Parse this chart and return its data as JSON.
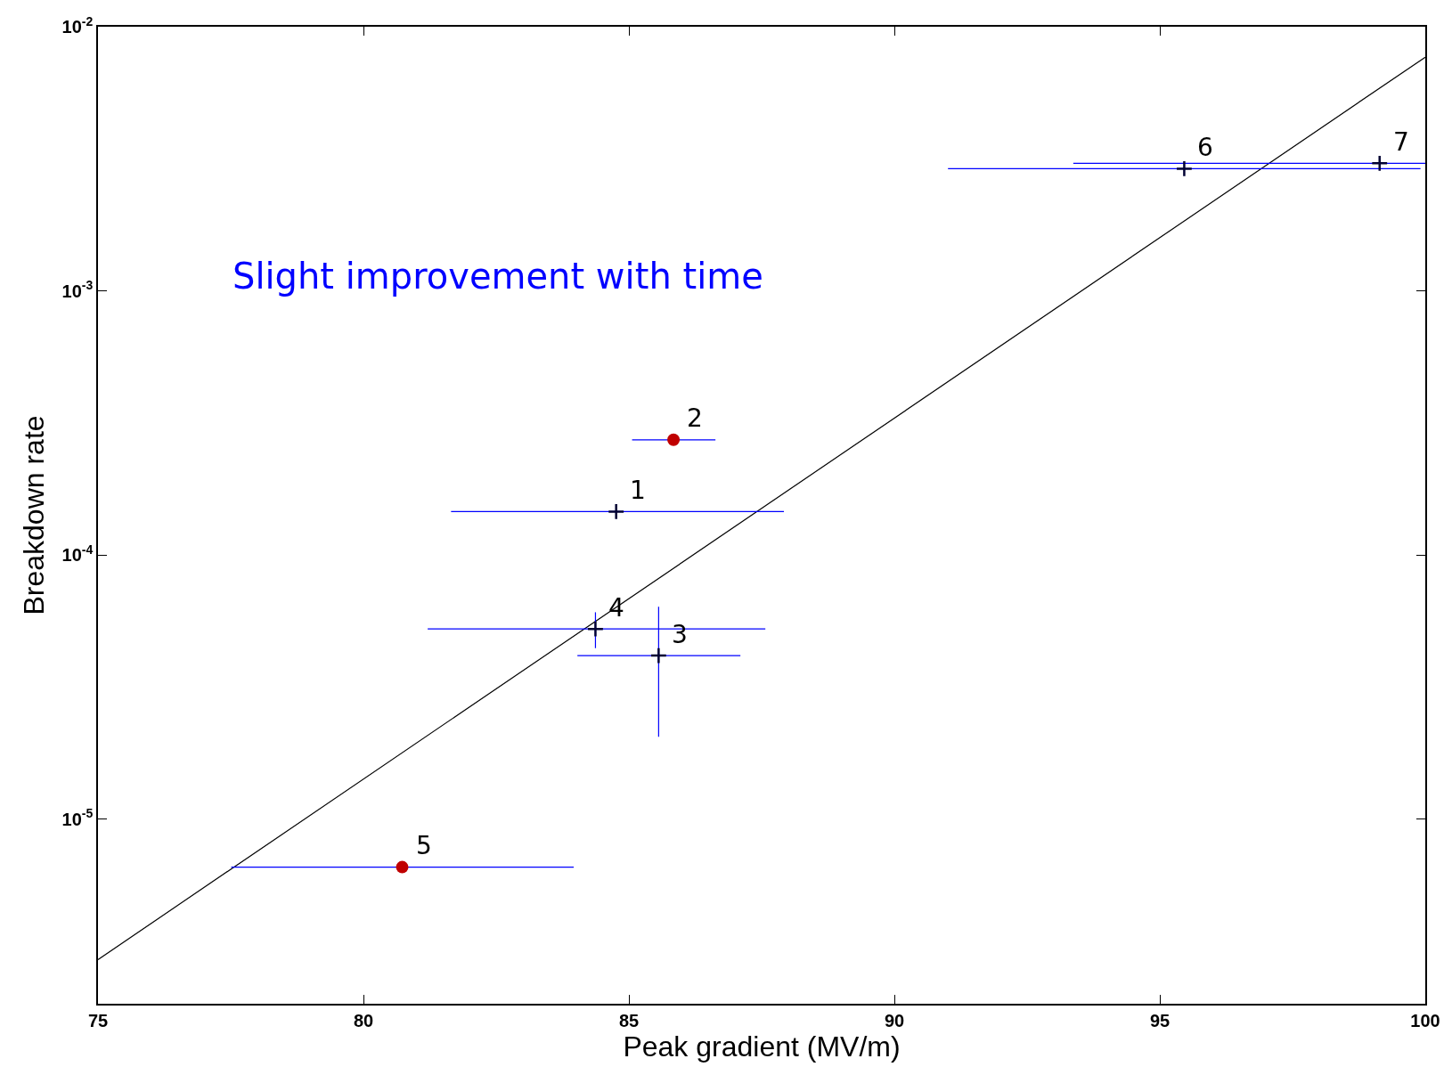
{
  "chart_data": {
    "type": "scatter",
    "xlabel": "Peak gradient (MV/m)",
    "ylabel": "Breakdown rate",
    "log": "y",
    "grid": false,
    "xlim": [
      75,
      100
    ],
    "xticks": [
      75,
      80,
      85,
      90,
      95,
      100
    ],
    "ylim": [
      2e-06,
      0.01
    ],
    "yticks": [
      {
        "value": 1e-05,
        "label": "10$^{-5}$"
      },
      {
        "value": 0.0001,
        "label": "10$^{-4}$"
      },
      {
        "value": 0.001,
        "label": "10$^{-3}$"
      },
      {
        "value": 0.01,
        "label": "10$^{-2}$"
      }
    ],
    "series": [
      {
        "type": "line",
        "color": "#000000",
        "marker": "none",
        "line_style": "solid",
        "x": [
          75,
          100
        ],
        "values": [
          2.94e-06,
          0.00767
        ]
      },
      {
        "type": "scatter",
        "color": "#000033",
        "marker": "cross",
        "x": [
          84.76,
          85.56,
          84.37,
          95.46,
          99.14
        ],
        "values": [
          0.000146,
          4.16e-05,
          5.25e-05,
          0.0029,
          0.00304
        ],
        "xerrors": [
          [
            81.65,
            87.92
          ],
          [
            84.03,
            87.1
          ],
          [
            81.21,
            87.57
          ],
          [
            91.01,
            99.91
          ],
          [
            93.37,
            100
          ]
        ],
        "errors": [
          null,
          [
            2.05e-05,
            6.37e-05
          ],
          [
            4.44e-05,
            6.07e-05
          ],
          null,
          null
        ]
      },
      {
        "type": "scatter",
        "color": "#c00000",
        "marker": "circle",
        "x": [
          85.84,
          80.73
        ],
        "values": [
          0.000273,
          6.58e-06
        ],
        "xerrors": [
          [
            85.06,
            86.63
          ],
          [
            77.51,
            83.96
          ]
        ]
      }
    ],
    "annotations": [
      "Slight improvement with time",
      {
        "text": "1",
        "x": 84.76,
        "y": 0.000146
      },
      {
        "text": "2",
        "x": 85.84,
        "y": 0.000273
      },
      {
        "text": "3",
        "x": 85.56,
        "y": 4.16e-05
      },
      {
        "text": "4",
        "x": 84.37,
        "y": 5.25e-05
      },
      {
        "text": "5",
        "x": 80.73,
        "y": 6.58e-06
      },
      {
        "text": "6",
        "x": 95.46,
        "y": 0.0029
      },
      {
        "text": "7",
        "x": 99.14,
        "y": 0.00304
      }
    ]
  }
}
